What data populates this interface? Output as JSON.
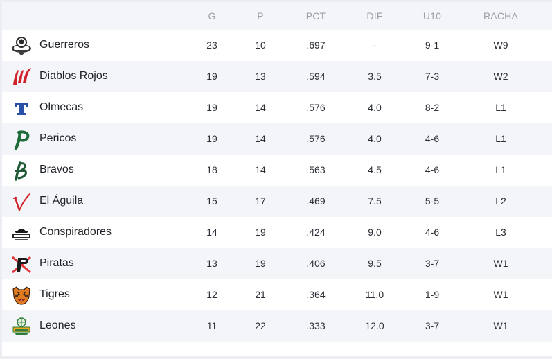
{
  "columns": {
    "g": "G",
    "p": "P",
    "pct": "PCT",
    "dif": "DIF",
    "u10": "U10",
    "racha": "RACHA"
  },
  "colors": {
    "header_bg": "#f4f5f8",
    "row_alt_bg": "#f4f5f8",
    "text": "#1f2328",
    "header_text": "#9aa0a8"
  },
  "rows": [
    {
      "team": "Guerreros",
      "icon": "guerreros-logo-icon",
      "g": "23",
      "p": "10",
      "pct": ".697",
      "dif": "-",
      "u10": "9-1",
      "racha": "W9"
    },
    {
      "team": "Diablos Rojos",
      "icon": "diablos-rojos-logo-icon",
      "g": "19",
      "p": "13",
      "pct": ".594",
      "dif": "3.5",
      "u10": "7-3",
      "racha": "W2"
    },
    {
      "team": "Olmecas",
      "icon": "olmecas-logo-icon",
      "g": "19",
      "p": "14",
      "pct": ".576",
      "dif": "4.0",
      "u10": "8-2",
      "racha": "L1"
    },
    {
      "team": "Pericos",
      "icon": "pericos-logo-icon",
      "g": "19",
      "p": "14",
      "pct": ".576",
      "dif": "4.0",
      "u10": "4-6",
      "racha": "L1"
    },
    {
      "team": "Bravos",
      "icon": "bravos-logo-icon",
      "g": "18",
      "p": "14",
      "pct": ".563",
      "dif": "4.5",
      "u10": "4-6",
      "racha": "L1"
    },
    {
      "team": "El Águila",
      "icon": "el-aguila-logo-icon",
      "g": "15",
      "p": "17",
      "pct": ".469",
      "dif": "7.5",
      "u10": "5-5",
      "racha": "L2"
    },
    {
      "team": "Conspiradores",
      "icon": "conspiradores-logo-icon",
      "g": "14",
      "p": "19",
      "pct": ".424",
      "dif": "9.0",
      "u10": "4-6",
      "racha": "L3"
    },
    {
      "team": "Piratas",
      "icon": "piratas-logo-icon",
      "g": "13",
      "p": "19",
      "pct": ".406",
      "dif": "9.5",
      "u10": "3-7",
      "racha": "W1"
    },
    {
      "team": "Tigres",
      "icon": "tigres-logo-icon",
      "g": "12",
      "p": "21",
      "pct": ".364",
      "dif": "11.0",
      "u10": "1-9",
      "racha": "W1"
    },
    {
      "team": "Leones",
      "icon": "leones-logo-icon",
      "g": "11",
      "p": "22",
      "pct": ".333",
      "dif": "12.0",
      "u10": "3-7",
      "racha": "W1"
    }
  ]
}
